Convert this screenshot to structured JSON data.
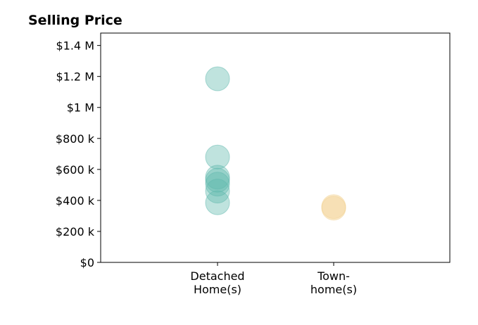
{
  "chart_data": {
    "type": "scatter",
    "title": "Selling Price",
    "xlabel": "",
    "ylabel": "",
    "categories": [
      [
        "Detached",
        "Home(s)"
      ],
      [
        "Town-",
        "home(s)"
      ]
    ],
    "y_ticks": [
      0,
      200000,
      400000,
      600000,
      800000,
      1000000,
      1200000,
      1400000
    ],
    "y_tick_labels": [
      "$0",
      "$200 k",
      "$400 k",
      "$600 k",
      "$800 k",
      "$1 M",
      "$1.2 M",
      "$1.4 M"
    ],
    "ylim": [
      0,
      1480000
    ],
    "grid": false,
    "series": [
      {
        "category_index": 0,
        "color": "#5fb8ad",
        "values": [
          1185000,
          680000,
          550000,
          530000,
          505000,
          460000,
          385000
        ]
      },
      {
        "category_index": 1,
        "color": "#f2d08c",
        "values": [
          360000,
          350000
        ]
      }
    ]
  }
}
